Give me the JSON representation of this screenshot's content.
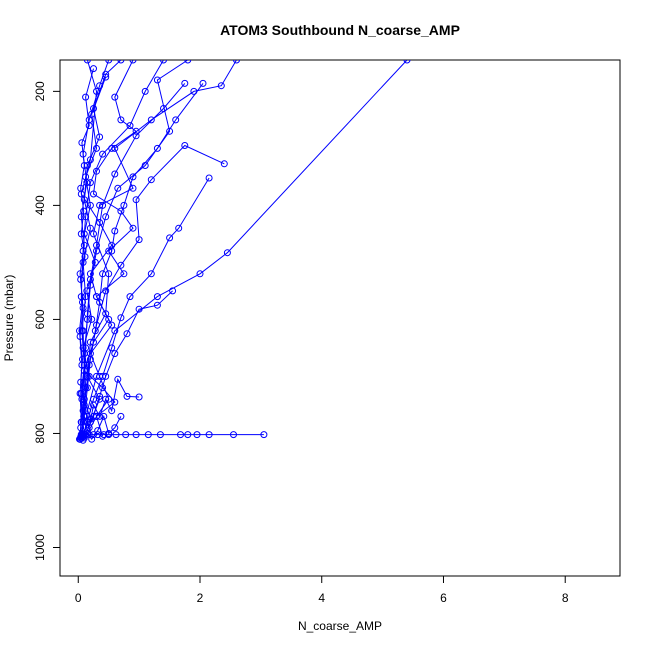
{
  "chart_data": {
    "type": "line",
    "title": "ATOM3 Southbound N_coarse_AMP",
    "xlabel": "N_coarse_AMP",
    "ylabel": "Pressure (mbar)",
    "xlim": [
      -0.3,
      8.9
    ],
    "ylim": [
      1050,
      145
    ],
    "y_reversed": true,
    "grid": false,
    "x_ticks": [
      0,
      2,
      4,
      6,
      8
    ],
    "y_ticks": [
      200,
      400,
      600,
      800,
      1000
    ],
    "series_color": "#0000FF",
    "marker": "open-circle",
    "series": [
      {
        "values": [
          [
            0.15,
            145
          ],
          [
            0.3,
            200
          ],
          [
            0.2,
            320
          ],
          [
            0.05,
            380
          ],
          [
            0.35,
            430
          ],
          [
            0.55,
            470
          ],
          [
            0.2,
            520
          ],
          [
            0.3,
            560
          ],
          [
            0.5,
            600
          ],
          [
            0.25,
            640
          ],
          [
            0.1,
            690
          ],
          [
            0.4,
            720
          ],
          [
            0.6,
            745
          ],
          [
            0.3,
            770
          ],
          [
            0.15,
            800
          ]
        ]
      },
      {
        "values": [
          [
            0.9,
            145
          ],
          [
            0.6,
            210
          ],
          [
            0.7,
            250
          ],
          [
            0.95,
            270
          ],
          [
            0.55,
            300
          ],
          [
            0.3,
            340
          ],
          [
            0.25,
            380
          ],
          [
            0.7,
            410
          ],
          [
            0.9,
            440
          ],
          [
            0.5,
            480
          ],
          [
            0.75,
            520
          ],
          [
            0.3,
            560
          ],
          [
            0.55,
            610
          ],
          [
            0.2,
            660
          ],
          [
            0.35,
            700
          ],
          [
            0.5,
            740
          ],
          [
            0.3,
            770
          ],
          [
            0.4,
            805
          ]
        ]
      },
      {
        "values": [
          [
            5.4,
            145
          ],
          [
            2.45,
            483
          ],
          [
            2.0,
            520
          ],
          [
            1.3,
            560
          ],
          [
            0.6,
            620
          ],
          [
            0.3,
            700
          ],
          [
            0.15,
            760
          ],
          [
            0.1,
            805
          ]
        ]
      },
      {
        "values": [
          [
            3.05,
            802
          ],
          [
            2.55,
            802
          ],
          [
            2.15,
            802
          ],
          [
            1.95,
            802
          ],
          [
            1.8,
            802
          ],
          [
            1.68,
            802
          ],
          [
            1.35,
            802
          ],
          [
            1.15,
            802
          ],
          [
            0.95,
            802
          ],
          [
            0.78,
            802
          ],
          [
            0.62,
            802
          ],
          [
            0.5,
            802
          ],
          [
            0.42,
            802
          ],
          [
            0.32,
            802
          ],
          [
            0.25,
            802
          ],
          [
            0.18,
            802
          ],
          [
            0.12,
            802
          ],
          [
            0.08,
            802
          ],
          [
            0.05,
            802
          ]
        ]
      },
      {
        "values": [
          [
            2.6,
            145
          ],
          [
            2.35,
            190
          ],
          [
            1.9,
            200
          ],
          [
            1.2,
            250
          ],
          [
            0.6,
            300
          ],
          [
            0.9,
            370
          ],
          [
            0.35,
            400
          ],
          [
            0.25,
            450
          ],
          [
            0.5,
            520
          ],
          [
            0.45,
            590
          ],
          [
            0.2,
            640
          ],
          [
            0.15,
            700
          ],
          [
            0.35,
            740
          ],
          [
            0.2,
            780
          ],
          [
            0.1,
            808
          ]
        ]
      },
      {
        "values": [
          [
            1.4,
            145
          ],
          [
            1.1,
            200
          ],
          [
            0.85,
            260
          ],
          [
            0.4,
            310
          ],
          [
            0.2,
            360
          ],
          [
            0.12,
            420
          ],
          [
            0.08,
            480
          ],
          [
            0.05,
            560
          ],
          [
            0.08,
            620
          ],
          [
            0.1,
            690
          ],
          [
            0.06,
            740
          ],
          [
            0.04,
            790
          ],
          [
            0.03,
            810
          ]
        ]
      },
      {
        "values": [
          [
            2.4,
            327
          ],
          [
            1.75,
            295
          ],
          [
            1.2,
            355
          ],
          [
            0.95,
            390
          ],
          [
            1.0,
            460
          ],
          [
            0.7,
            505
          ],
          [
            0.45,
            550
          ],
          [
            0.3,
            610
          ],
          [
            0.18,
            680
          ],
          [
            0.1,
            750
          ],
          [
            0.07,
            800
          ]
        ]
      },
      {
        "values": [
          [
            2.15,
            352
          ],
          [
            1.65,
            440
          ],
          [
            1.5,
            457
          ],
          [
            1.2,
            520
          ],
          [
            0.85,
            560
          ],
          [
            0.7,
            597
          ],
          [
            0.55,
            650
          ],
          [
            0.4,
            700
          ],
          [
            0.25,
            740
          ],
          [
            0.15,
            780
          ],
          [
            0.08,
            806
          ]
        ]
      },
      {
        "values": [
          [
            1.8,
            145
          ],
          [
            1.3,
            180
          ],
          [
            1.5,
            270
          ],
          [
            1.1,
            330
          ],
          [
            0.65,
            370
          ],
          [
            0.45,
            420
          ],
          [
            0.3,
            480
          ],
          [
            0.2,
            540
          ],
          [
            0.15,
            600
          ],
          [
            0.1,
            660
          ],
          [
            0.12,
            720
          ],
          [
            0.09,
            770
          ],
          [
            0.05,
            805
          ]
        ]
      },
      {
        "values": [
          [
            0.7,
            145
          ],
          [
            0.45,
            170
          ],
          [
            0.25,
            230
          ],
          [
            0.35,
            280
          ],
          [
            0.15,
            330
          ],
          [
            0.1,
            390
          ],
          [
            0.2,
            440
          ],
          [
            0.08,
            500
          ],
          [
            0.12,
            560
          ],
          [
            0.06,
            620
          ],
          [
            0.1,
            680
          ],
          [
            0.05,
            730
          ],
          [
            0.08,
            780
          ],
          [
            0.04,
            808
          ]
        ]
      },
      {
        "values": [
          [
            1.55,
            550
          ],
          [
            1.3,
            575
          ],
          [
            1.0,
            582
          ],
          [
            0.8,
            625
          ],
          [
            0.6,
            660
          ],
          [
            0.45,
            700
          ],
          [
            0.35,
            735
          ],
          [
            0.25,
            770
          ],
          [
            0.15,
            795
          ]
        ]
      },
      {
        "values": [
          [
            1.75,
            186
          ],
          [
            1.4,
            230
          ],
          [
            0.95,
            278
          ],
          [
            0.6,
            345
          ],
          [
            0.4,
            400
          ],
          [
            0.3,
            470
          ],
          [
            0.2,
            530
          ],
          [
            0.15,
            590
          ],
          [
            0.12,
            650
          ],
          [
            0.1,
            710
          ],
          [
            0.08,
            760
          ],
          [
            0.06,
            800
          ]
        ]
      },
      {
        "values": [
          [
            0.25,
            160
          ],
          [
            0.12,
            210
          ],
          [
            0.18,
            260
          ],
          [
            0.06,
            290
          ],
          [
            0.1,
            330
          ],
          [
            0.04,
            370
          ],
          [
            0.09,
            410
          ],
          [
            0.05,
            450
          ],
          [
            0.11,
            490
          ],
          [
            0.04,
            530
          ],
          [
            0.08,
            580
          ],
          [
            0.03,
            630
          ],
          [
            0.07,
            670
          ],
          [
            0.04,
            710
          ],
          [
            0.09,
            745
          ],
          [
            0.05,
            780
          ],
          [
            0.03,
            810
          ]
        ]
      },
      {
        "values": [
          [
            0.45,
            175
          ],
          [
            0.22,
            240
          ],
          [
            0.3,
            300
          ],
          [
            0.12,
            350
          ],
          [
            0.2,
            400
          ],
          [
            0.1,
            450
          ],
          [
            0.28,
            500
          ],
          [
            0.14,
            550
          ],
          [
            0.22,
            600
          ],
          [
            0.08,
            650
          ],
          [
            0.18,
            700
          ],
          [
            0.1,
            740
          ],
          [
            0.2,
            775
          ],
          [
            0.06,
            805
          ]
        ]
      },
      {
        "values": [
          [
            1.0,
            736
          ],
          [
            0.8,
            735
          ],
          [
            0.65,
            705
          ],
          [
            0.55,
            760
          ],
          [
            0.45,
            740
          ],
          [
            0.35,
            770
          ],
          [
            0.25,
            750
          ],
          [
            0.18,
            790
          ],
          [
            0.1,
            770
          ]
        ]
      },
      {
        "values": [
          [
            0.7,
            770
          ],
          [
            0.6,
            790
          ],
          [
            0.5,
            800
          ],
          [
            0.42,
            770
          ],
          [
            0.32,
            795
          ],
          [
            0.22,
            810
          ],
          [
            0.15,
            800
          ],
          [
            0.08,
            812
          ],
          [
            0.04,
            806
          ]
        ]
      },
      {
        "values": [
          [
            2.05,
            186
          ],
          [
            1.6,
            250
          ],
          [
            1.3,
            300
          ],
          [
            0.9,
            350
          ],
          [
            0.75,
            400
          ],
          [
            0.6,
            445
          ],
          [
            0.55,
            480
          ],
          [
            0.4,
            520
          ],
          [
            0.35,
            570
          ],
          [
            0.28,
            620
          ],
          [
            0.2,
            670
          ],
          [
            0.15,
            720
          ],
          [
            0.1,
            770
          ],
          [
            0.06,
            804
          ]
        ]
      },
      {
        "values": [
          [
            0.5,
            145
          ],
          [
            0.35,
            190
          ],
          [
            0.18,
            250
          ],
          [
            0.08,
            310
          ],
          [
            0.14,
            360
          ],
          [
            0.05,
            420
          ],
          [
            0.1,
            470
          ],
          [
            0.03,
            520
          ],
          [
            0.07,
            570
          ],
          [
            0.02,
            620
          ],
          [
            0.06,
            680
          ],
          [
            0.03,
            730
          ],
          [
            0.05,
            780
          ],
          [
            0.02,
            810
          ]
        ]
      }
    ]
  }
}
